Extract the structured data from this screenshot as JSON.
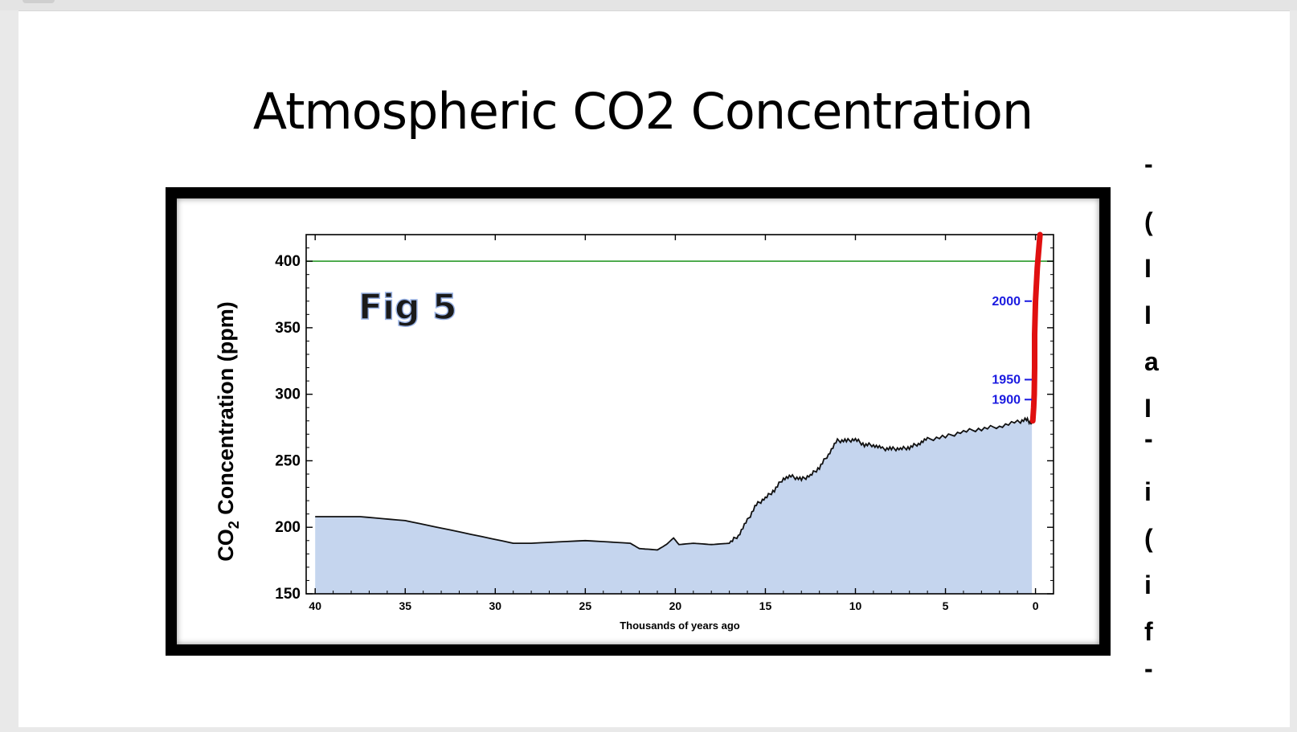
{
  "slide": {
    "title": "Atmospheric CO2 Concentration",
    "side_glyphs": [
      "-",
      "(",
      "I",
      "I",
      "a",
      "I",
      "-",
      "i",
      "(",
      "i",
      "f",
      "-"
    ]
  },
  "colors": {
    "fill": "#c5d5ee",
    "line": "#111111",
    "reference": "#2a9a2a",
    "modern": "#e01010",
    "year_labels": "#1a1ae0",
    "fig_label": "#1a1a1a",
    "fig_outline": "#9bb4e6"
  },
  "chart_data": {
    "type": "area",
    "xlabel": "Thousands of years ago",
    "ylabel_main": "CO",
    "ylabel_sub": "2",
    "ylabel_rest": " Concentration (ppm)",
    "xlim": [
      40.5,
      -1
    ],
    "ylim": [
      150,
      420
    ],
    "x_reversed": true,
    "x_ticks": [
      40,
      35,
      30,
      25,
      20,
      15,
      10,
      5,
      0
    ],
    "y_ticks": [
      150,
      200,
      250,
      300,
      350,
      400
    ],
    "reference_line": 400,
    "annotation": "Fig 5",
    "series": [
      {
        "values": [
          [
            40,
            208
          ],
          [
            37.5,
            208
          ],
          [
            35,
            205
          ],
          [
            32.5,
            198
          ],
          [
            29,
            188
          ],
          [
            28,
            188
          ],
          [
            25,
            190
          ],
          [
            22.5,
            188
          ],
          [
            22,
            184
          ],
          [
            21,
            183
          ],
          [
            20.5,
            187
          ],
          [
            20.1,
            192
          ],
          [
            19.8,
            187
          ],
          [
            19,
            188
          ],
          [
            18,
            187
          ],
          [
            17,
            188
          ],
          [
            16.5,
            194
          ],
          [
            16,
            205
          ],
          [
            15.5,
            217
          ],
          [
            15,
            222
          ],
          [
            14.5,
            228
          ],
          [
            14,
            237
          ],
          [
            13.5,
            238
          ],
          [
            13,
            236
          ],
          [
            12.5,
            239
          ],
          [
            12,
            245
          ],
          [
            11.5,
            255
          ],
          [
            11,
            265
          ],
          [
            10.5,
            265
          ],
          [
            10,
            266
          ],
          [
            9.5,
            262
          ],
          [
            9,
            262
          ],
          [
            8.5,
            259
          ],
          [
            8,
            259
          ],
          [
            7.5,
            259
          ],
          [
            7,
            260
          ],
          [
            6.5,
            263
          ],
          [
            6,
            266
          ],
          [
            5,
            268
          ],
          [
            4,
            272
          ],
          [
            3,
            274
          ],
          [
            2,
            276
          ],
          [
            1,
            279
          ],
          [
            0.5,
            281
          ],
          [
            0.2,
            278
          ]
        ]
      },
      {
        "name": "modern",
        "values": [
          [
            0.15,
            280
          ],
          [
            0.1,
            290
          ],
          [
            0.07,
            300
          ],
          [
            0.05,
            320
          ],
          [
            0.05,
            345
          ],
          [
            0,
            370
          ],
          [
            -0.1,
            395
          ],
          [
            -0.25,
            420
          ]
        ]
      }
    ],
    "year_marks": [
      {
        "label": "2000",
        "ppm": 370
      },
      {
        "label": "1950",
        "ppm": 311
      },
      {
        "label": "1900",
        "ppm": 296
      }
    ]
  }
}
